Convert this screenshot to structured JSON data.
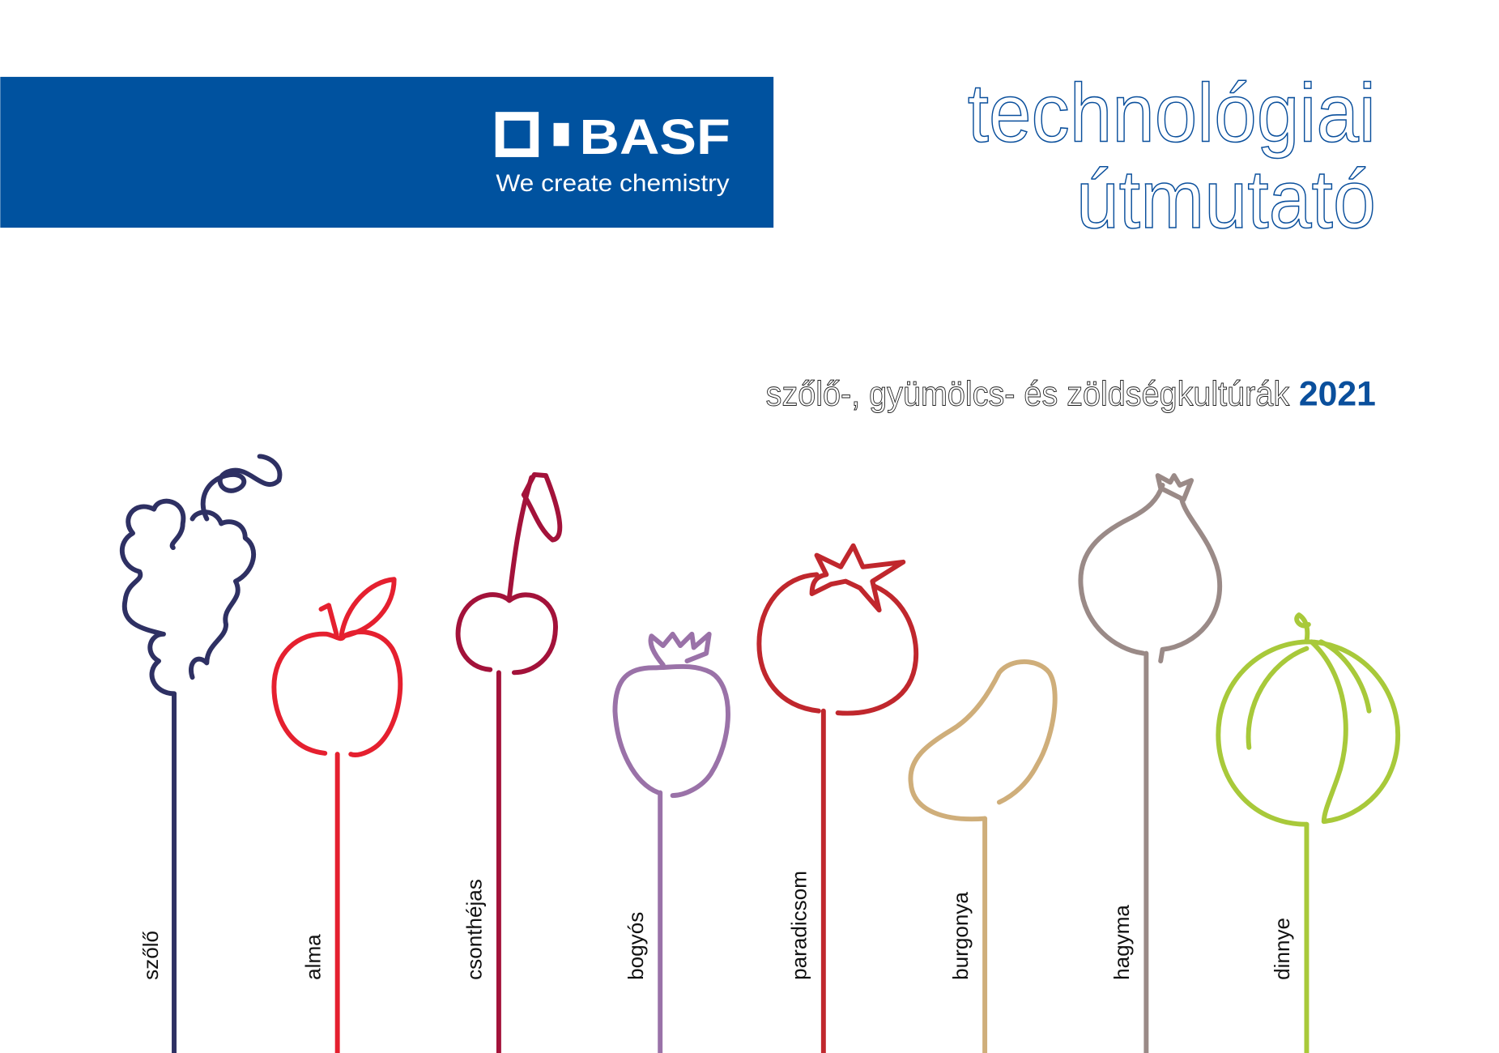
{
  "brand": {
    "logo_text": "BASF",
    "tagline": "We create chemistry",
    "banner_color": "#00529f"
  },
  "title": {
    "line1": "technológiai",
    "line2": "útmutató",
    "color": "#0a4f9c"
  },
  "subtitle": {
    "text": "szőlő-, gyümölcs- és zöldségkultúrák",
    "year": "2021"
  },
  "crops": [
    {
      "label": "szőlő",
      "icon": "grape-icon",
      "color": "#2e3063"
    },
    {
      "label": "alma",
      "icon": "apple-icon",
      "color": "#e5202f"
    },
    {
      "label": "csonthéjas",
      "icon": "cherry-icon",
      "color": "#a3123a"
    },
    {
      "label": "bogyós",
      "icon": "strawberry-icon",
      "color": "#9a72a8"
    },
    {
      "label": "paradicsom",
      "icon": "tomato-icon",
      "color": "#c0272d"
    },
    {
      "label": "burgonya",
      "icon": "potato-icon",
      "color": "#cfae7a"
    },
    {
      "label": "hagyma",
      "icon": "onion-icon",
      "color": "#9a8a87"
    },
    {
      "label": "dinnye",
      "icon": "melon-icon",
      "color": "#a8c93a"
    }
  ]
}
